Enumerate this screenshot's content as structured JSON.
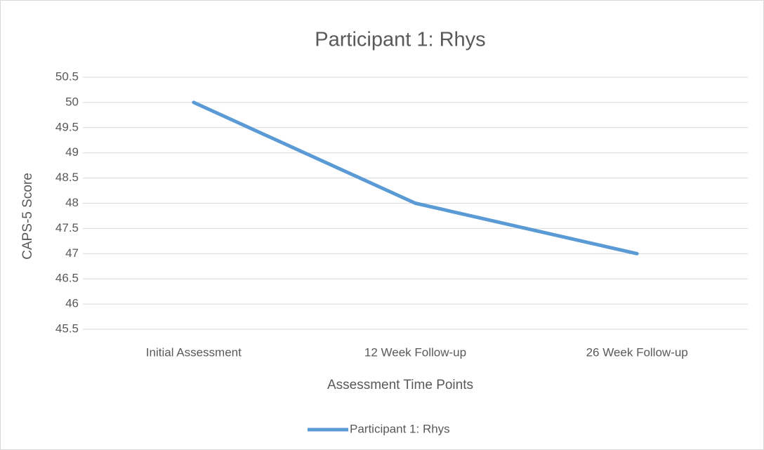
{
  "chart_data": {
    "type": "line",
    "title": "Participant 1: Rhys",
    "x_label": "Assessment Time Points",
    "y_label": "CAPS-5 Score",
    "categories": [
      "Initial Assessment",
      "12 Week Follow-up",
      "26 Week Follow-up"
    ],
    "series": [
      {
        "name": "Participant 1: Rhys",
        "color": "#5b9bd5",
        "values": [
          50,
          48,
          47
        ]
      }
    ],
    "ylim": [
      45.5,
      50.5
    ],
    "yticks": [
      45.5,
      46,
      46.5,
      47,
      47.5,
      48,
      48.5,
      49,
      49.5,
      50,
      50.5
    ],
    "grid": true,
    "legend": "bottom"
  }
}
